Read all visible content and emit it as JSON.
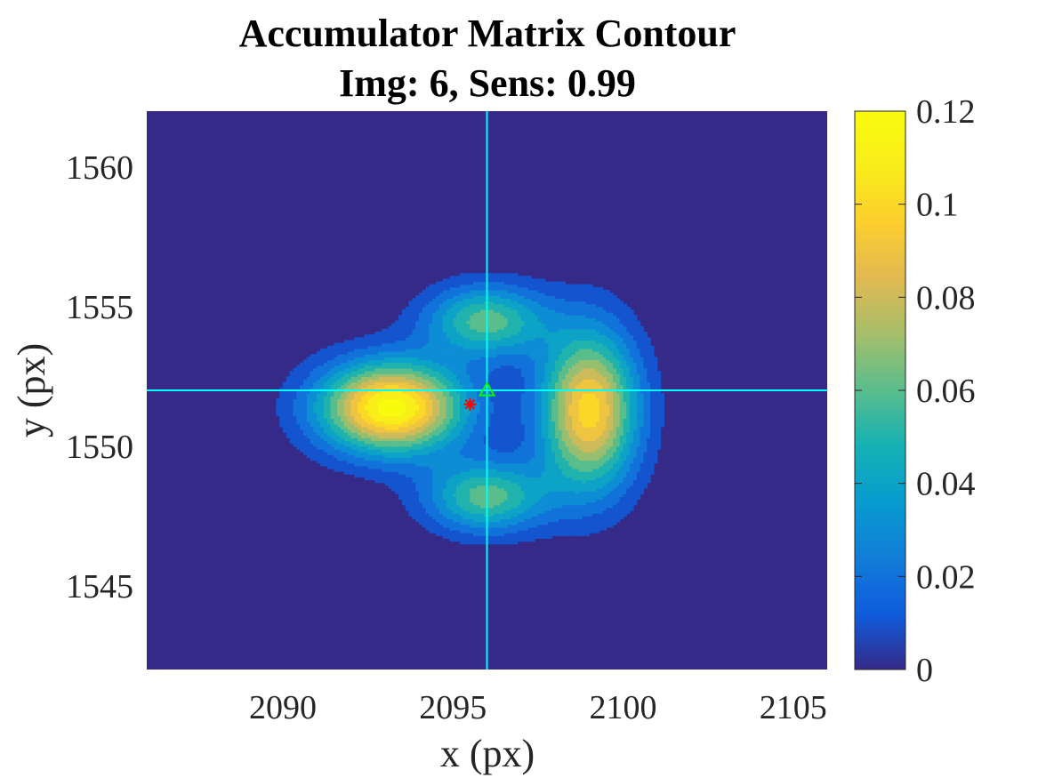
{
  "chart_data": {
    "type": "contour",
    "title": "Accumulator Matrix Contour",
    "subtitle": "Img: 6, Sens: 0.99",
    "xlabel": "x (px)",
    "ylabel": "y (px)",
    "xlim": [
      2086,
      2106
    ],
    "ylim": [
      1542,
      1562
    ],
    "xticks": [
      2090,
      2095,
      2100,
      2105
    ],
    "yticks": [
      1545,
      1550,
      1555,
      1560
    ],
    "colorbar": {
      "range": [
        0,
        0.12
      ],
      "ticks": [
        0,
        0.02,
        0.04,
        0.06,
        0.08,
        0.1,
        0.12
      ],
      "tick_labels": [
        "0",
        "0.02",
        "0.04",
        "0.06",
        "0.08",
        "0.1",
        "0.12"
      ]
    },
    "colormap": "parula",
    "crosshair": {
      "x": 2096,
      "y": 1552,
      "color": "#00ffff"
    },
    "markers": [
      {
        "symbol": "asterisk",
        "x": 2095.5,
        "y": 1551.5,
        "color": "#ff0000"
      },
      {
        "symbol": "triangle",
        "x": 2096,
        "y": 1552,
        "color": "#00ff00"
      }
    ],
    "field": {
      "background": 0,
      "peaks": [
        {
          "x": 2093.2,
          "y": 1551.4,
          "amplitude": 0.125,
          "sigma_x": 1.5,
          "sigma_y": 1.15
        },
        {
          "x": 2099.0,
          "y": 1551.3,
          "amplitude": 0.105,
          "sigma_x": 1.0,
          "sigma_y": 2.0
        },
        {
          "x": 2096.0,
          "y": 1554.5,
          "amplitude": 0.065,
          "sigma_x": 1.25,
          "sigma_y": 0.9
        },
        {
          "x": 2096.0,
          "y": 1548.2,
          "amplitude": 0.065,
          "sigma_x": 1.25,
          "sigma_y": 0.9
        }
      ]
    }
  },
  "colors": {
    "crosshair": "#00ffff",
    "axes_background": "#352a87",
    "text": "#262626"
  }
}
